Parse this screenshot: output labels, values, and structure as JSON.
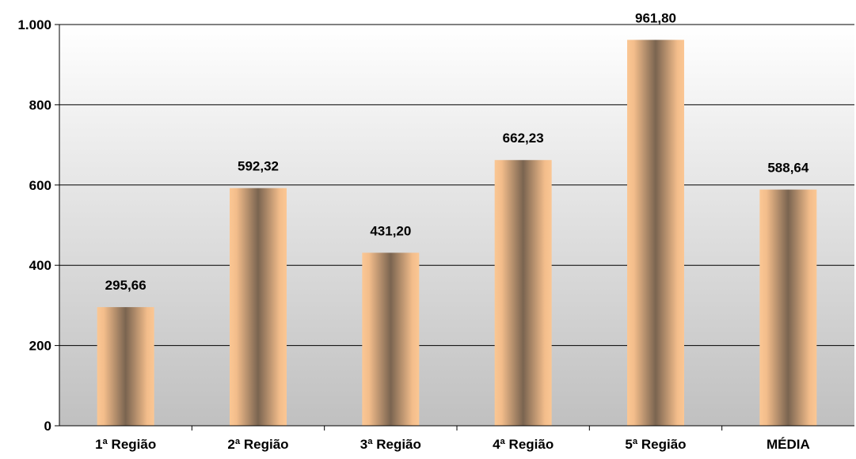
{
  "chart_data": {
    "type": "bar",
    "title": "",
    "xlabel": "",
    "ylabel": "",
    "categories": [
      "1ª Região",
      "2ª Região",
      "3ª Região",
      "4ª Região",
      "5ª Região",
      "MÉDIA"
    ],
    "values": [
      295.66,
      592.32,
      431.2,
      662.23,
      961.8,
      588.64
    ],
    "value_labels": [
      "295,66",
      "592,32",
      "431,20",
      "662,23",
      "961,80",
      "588,64"
    ],
    "ylim": [
      0,
      1000
    ],
    "yticks": [
      0,
      200,
      400,
      600,
      800,
      1000
    ],
    "ytick_labels": [
      "0",
      "200",
      "400",
      "600",
      "800",
      "1.000"
    ],
    "grid": true,
    "legend": "none",
    "colors": {
      "bar_light": "#FBC794",
      "bar_dark": "#7A6450",
      "background_top": "#FFFFFF",
      "background_bottom": "#C0C0C0",
      "gridline": "#000000"
    }
  }
}
